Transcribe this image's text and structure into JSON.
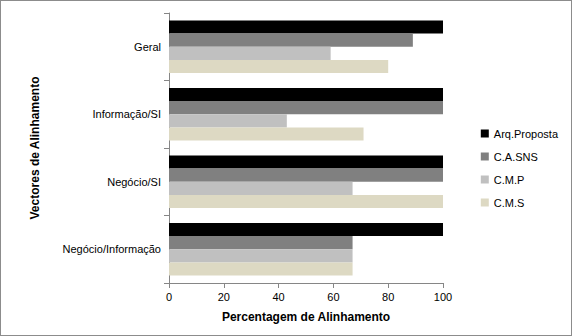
{
  "chart_data": {
    "type": "bar",
    "orientation": "horizontal",
    "x_label": "Percentagem de Alinhamento",
    "y_label": "Vectores de Alinhamento",
    "categories": [
      "Geral",
      "Informação/SI",
      "Negócio/SI",
      "Negócio/Informação"
    ],
    "series": [
      {
        "name": "Arq.Proposta",
        "color": "#000000",
        "values": [
          100,
          100,
          100,
          100
        ]
      },
      {
        "name": "C.A.SNS",
        "color": "#808080",
        "values": [
          89,
          100,
          100,
          67
        ]
      },
      {
        "name": "C.M.P",
        "color": "#c0c0c0",
        "values": [
          59,
          43,
          67,
          67
        ]
      },
      {
        "name": "C.M.S",
        "color": "#ddd9c3",
        "values": [
          80,
          71,
          100,
          67
        ]
      }
    ],
    "xlim": [
      0,
      100
    ],
    "xticks": [
      0,
      20,
      40,
      60,
      80,
      100
    ],
    "grid": false,
    "legend": "right"
  }
}
